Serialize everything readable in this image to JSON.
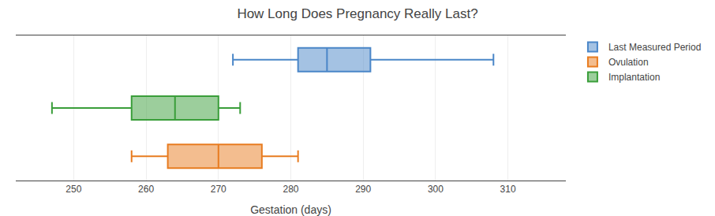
{
  "chart_data": {
    "type": "box",
    "orientation": "horizontal",
    "title": "How Long Does Pregnancy Really Last?",
    "xlabel": "Gestation (days)",
    "categories": [
      "Last Measured Period",
      "Implantation",
      "Ovulation"
    ],
    "series": [
      {
        "name": "Last Measured Period",
        "color": "#4a86c8",
        "whisker_min": 272,
        "q1": 281,
        "median": 285,
        "q3": 291,
        "whisker_max": 308
      },
      {
        "name": "Ovulation",
        "color": "#e87c20",
        "whisker_min": 258,
        "q1": 263,
        "median": 270,
        "q3": 276,
        "whisker_max": 281
      },
      {
        "name": "Implantation",
        "color": "#3a9e3a",
        "whisker_min": 247,
        "q1": 258,
        "median": 264,
        "q3": 270,
        "whisker_max": 273
      }
    ],
    "xlim": [
      242,
      318
    ],
    "xticks": [
      250,
      260,
      270,
      280,
      290,
      300,
      310
    ],
    "grid": true,
    "tick_labels": "x",
    "legend": "right"
  }
}
